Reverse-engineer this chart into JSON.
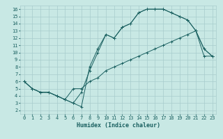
{
  "xlabel": "Humidex (Indice chaleur)",
  "ylabel": "",
  "xlim": [
    -0.5,
    23.5
  ],
  "ylim": [
    1.5,
    16.5
  ],
  "xticks": [
    0,
    1,
    2,
    3,
    4,
    5,
    6,
    7,
    8,
    9,
    10,
    11,
    12,
    13,
    14,
    15,
    16,
    17,
    18,
    19,
    20,
    21,
    22,
    23
  ],
  "yticks": [
    2,
    3,
    4,
    5,
    6,
    7,
    8,
    9,
    10,
    11,
    12,
    13,
    14,
    15,
    16
  ],
  "bg_color": "#c8e8e4",
  "grid_color": "#a8cccc",
  "line_color": "#1a6060",
  "line1_x": [
    0,
    1,
    2,
    3,
    4,
    5,
    6,
    7,
    8,
    9,
    10,
    11,
    12,
    13,
    14,
    15,
    16,
    17,
    18,
    19,
    20,
    21,
    22,
    23
  ],
  "line1_y": [
    6.0,
    5.0,
    4.5,
    4.5,
    4.0,
    3.5,
    3.0,
    2.5,
    8.0,
    10.5,
    12.5,
    12.0,
    13.5,
    14.0,
    15.5,
    16.0,
    16.0,
    16.0,
    15.5,
    15.0,
    14.5,
    13.0,
    10.5,
    9.5
  ],
  "line2_x": [
    0,
    1,
    2,
    3,
    4,
    5,
    6,
    7,
    8,
    9,
    10,
    11,
    12,
    13,
    14,
    15,
    16,
    17,
    18,
    19,
    20,
    21,
    22,
    23
  ],
  "line2_y": [
    6.0,
    5.0,
    4.5,
    4.5,
    4.0,
    3.5,
    3.0,
    4.5,
    7.5,
    10.0,
    12.5,
    12.0,
    13.5,
    14.0,
    15.5,
    16.0,
    16.0,
    16.0,
    15.5,
    15.0,
    14.5,
    13.0,
    10.5,
    9.5
  ],
  "line3_x": [
    0,
    1,
    2,
    3,
    4,
    5,
    6,
    7,
    8,
    9,
    10,
    11,
    12,
    13,
    14,
    15,
    16,
    17,
    18,
    19,
    20,
    21,
    22,
    23
  ],
  "line3_y": [
    6.0,
    5.0,
    4.5,
    4.5,
    4.0,
    3.5,
    5.0,
    5.0,
    6.0,
    6.5,
    7.5,
    8.0,
    8.5,
    9.0,
    9.5,
    10.0,
    10.5,
    11.0,
    11.5,
    12.0,
    12.5,
    13.0,
    9.5,
    9.5
  ]
}
